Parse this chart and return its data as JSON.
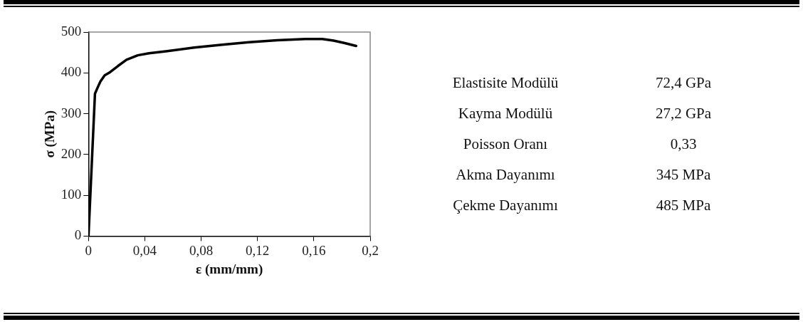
{
  "chart_data": [
    {
      "type": "line",
      "xlabel": "ε (mm/mm)",
      "ylabel": "σ (MPa)",
      "series": [
        {
          "color": "#000000",
          "x": [
            0,
            0.0046,
            0.0065,
            0.0085,
            0.0115,
            0.0154,
            0.021,
            0.027,
            0.035,
            0.043,
            0.055,
            0.075,
            0.095,
            0.114,
            0.134,
            0.154,
            0.166,
            0.174,
            0.182,
            0.19
          ],
          "values": [
            0,
            349,
            364,
            379,
            394,
            402,
            417,
            432,
            443,
            448,
            453,
            462,
            469,
            475,
            480,
            483,
            483,
            479,
            473,
            466
          ]
        }
      ],
      "xlim": [
        0,
        0.2
      ],
      "xticks": [
        0,
        {
          "value": 0.04,
          "label": "0,04"
        },
        {
          "value": 0.08,
          "label": "0,08"
        },
        {
          "value": 0.12,
          "label": "0,12"
        },
        {
          "value": 0.16,
          "label": "0,16"
        },
        {
          "value": 0.2,
          "label": "0,2"
        }
      ],
      "ylim": [
        0,
        500
      ],
      "yticks": [
        0,
        100,
        200,
        300,
        400,
        500
      ],
      "grid": false,
      "legend": false,
      "marker": "none",
      "line_style": "solid"
    },
    {
      "type": "other",
      "annotations": [
        "Elastisite Modülü",
        "72,4 GPa",
        "Kayma Modülü",
        "27,2 GPa",
        "Poisson Oranı",
        "0,33",
        "Akma Dayanımı",
        "345 MPa",
        "Çekme Dayanımı",
        "485 MPa"
      ]
    }
  ]
}
